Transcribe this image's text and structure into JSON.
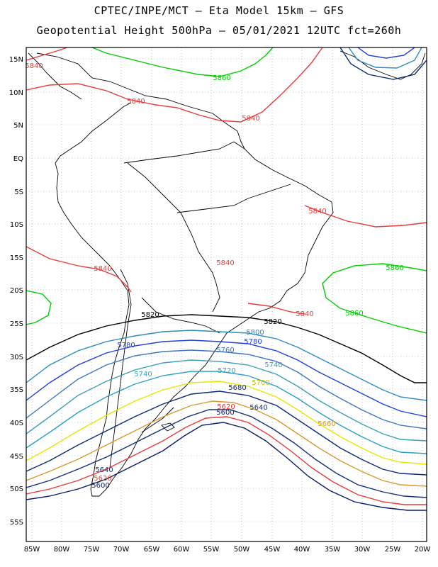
{
  "header": {
    "line1": "CPTEC/INPE/MCT –  Eta Model 15km – GFS",
    "line2": "Geopotential Height 500hPa – 05/01/2021 12UTC fct=260h"
  },
  "axes": {
    "lat_labels": [
      "15N",
      "10N",
      "5N",
      "EQ",
      "5S",
      "10S",
      "15S",
      "20S",
      "25S",
      "30S",
      "35S",
      "40S",
      "45S",
      "50S",
      "55S"
    ],
    "lon_labels": [
      "85W",
      "80W",
      "75W",
      "70W",
      "65W",
      "60W",
      "55W",
      "50W",
      "45W",
      "40W",
      "35W",
      "30W",
      "25W",
      "20W"
    ]
  },
  "contours": [
    {
      "value": "5860",
      "color": "#00cc00"
    },
    {
      "value": "5840",
      "color": "#e83c3c"
    },
    {
      "value": "5820",
      "color": "#000000"
    },
    {
      "value": "5800",
      "color": "#2b8cbe"
    },
    {
      "value": "5780",
      "color": "#1f3fe0"
    },
    {
      "value": "5760",
      "color": "#3f76c0"
    },
    {
      "value": "5740",
      "color": "#3d9fb8"
    },
    {
      "value": "5720",
      "color": "#2aa0c8"
    },
    {
      "value": "5700",
      "color": "#e8e800"
    },
    {
      "value": "5680",
      "color": "#0a2a7a"
    },
    {
      "value": "5660",
      "color": "#d89a30"
    },
    {
      "value": "5640",
      "color": "#12307a"
    },
    {
      "value": "5620",
      "color": "#e83c3c"
    },
    {
      "value": "5600",
      "color": "#0a1a6a"
    }
  ],
  "contour_labels": [
    {
      "text": "5860",
      "color": "#00cc00"
    },
    {
      "text": "5840",
      "color": "#e83c3c"
    },
    {
      "text": "5840",
      "color": "#e83c3c"
    },
    {
      "text": "5840",
      "color": "#e83c3c"
    },
    {
      "text": "5840",
      "color": "#e83c3c"
    },
    {
      "text": "5840",
      "color": "#e83c3c"
    },
    {
      "text": "5840",
      "color": "#e83c3c"
    },
    {
      "text": "5840",
      "color": "#e83c3c"
    },
    {
      "text": "5860",
      "color": "#00cc00"
    },
    {
      "text": "5860",
      "color": "#00cc00"
    },
    {
      "text": "5820",
      "color": "#000000"
    },
    {
      "text": "5820",
      "color": "#000000"
    },
    {
      "text": "5800",
      "color": "#2b8cbe"
    },
    {
      "text": "5780",
      "color": "#1f3fe0"
    },
    {
      "text": "5780",
      "color": "#1f3fe0"
    },
    {
      "text": "5760",
      "color": "#3f76c0"
    },
    {
      "text": "5740",
      "color": "#3d9fb8"
    },
    {
      "text": "5740",
      "color": "#3d9fb8"
    },
    {
      "text": "5720",
      "color": "#2aa0c8"
    },
    {
      "text": "5700",
      "color": "#d0c000"
    },
    {
      "text": "5680",
      "color": "#0a2a7a"
    },
    {
      "text": "5660",
      "color": "#d89a30"
    },
    {
      "text": "5640",
      "color": "#12307a"
    },
    {
      "text": "5620",
      "color": "#e83c3c"
    },
    {
      "text": "5600",
      "color": "#0a1a6a"
    },
    {
      "text": "5640",
      "color": "#12307a"
    },
    {
      "text": "5620",
      "color": "#e83c3c"
    },
    {
      "text": "5600",
      "color": "#0a1a6a"
    }
  ]
}
